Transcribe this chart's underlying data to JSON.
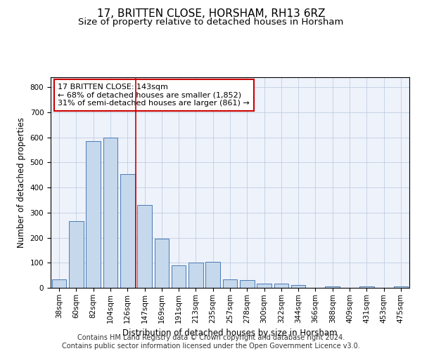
{
  "title": "17, BRITTEN CLOSE, HORSHAM, RH13 6RZ",
  "subtitle": "Size of property relative to detached houses in Horsham",
  "xlabel": "Distribution of detached houses by size in Horsham",
  "ylabel": "Number of detached properties",
  "categories": [
    "38sqm",
    "60sqm",
    "82sqm",
    "104sqm",
    "126sqm",
    "147sqm",
    "169sqm",
    "191sqm",
    "213sqm",
    "235sqm",
    "257sqm",
    "278sqm",
    "300sqm",
    "322sqm",
    "344sqm",
    "366sqm",
    "388sqm",
    "409sqm",
    "431sqm",
    "453sqm",
    "475sqm"
  ],
  "values": [
    35,
    265,
    585,
    600,
    455,
    330,
    195,
    90,
    100,
    105,
    35,
    32,
    17,
    17,
    12,
    0,
    7,
    0,
    7,
    0,
    7
  ],
  "bar_color": "#c5d8ec",
  "bar_edge_color": "#4a7ab5",
  "vline_x": 4.5,
  "annotation_text": "17 BRITTEN CLOSE: 143sqm\n← 68% of detached houses are smaller (1,852)\n31% of semi-detached houses are larger (861) →",
  "annotation_box_color": "#ffffff",
  "annotation_box_edge_color": "#cc0000",
  "vline_color": "#cc0000",
  "ylim": [
    0,
    840
  ],
  "yticks": [
    0,
    100,
    200,
    300,
    400,
    500,
    600,
    700,
    800
  ],
  "footer_text": "Contains HM Land Registry data © Crown copyright and database right 2024.\nContains public sector information licensed under the Open Government Licence v3.0.",
  "bg_color": "#eef2fb",
  "title_fontsize": 11,
  "subtitle_fontsize": 9.5,
  "axis_label_fontsize": 8.5,
  "tick_fontsize": 7.5,
  "annotation_fontsize": 8,
  "footer_fontsize": 7
}
